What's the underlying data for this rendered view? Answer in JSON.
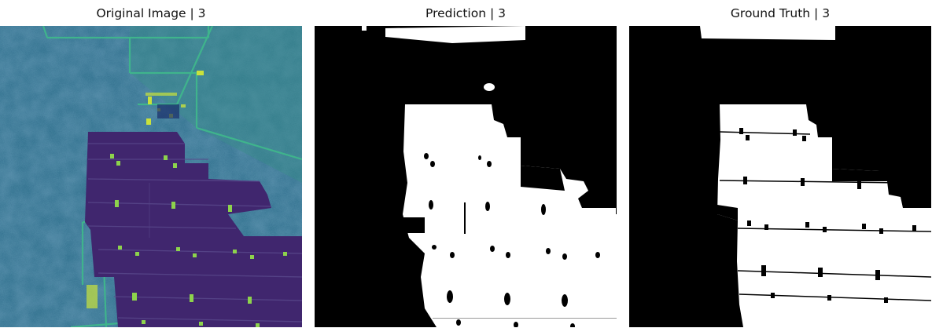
{
  "figure": {
    "panels": [
      {
        "id": "original",
        "title": "Original Image | 3"
      },
      {
        "id": "prediction",
        "title": "Prediction | 3"
      },
      {
        "id": "ground_truth",
        "title": "Ground Truth | 3"
      }
    ],
    "colors": {
      "background": "#ffffff",
      "mask_fg": "#ffffff",
      "mask_bg": "#000000",
      "viridis_bg": "#2a6f88",
      "viridis_dark": "#40266e",
      "viridis_bright": "#c9e23b",
      "viridis_road": "#3fb48c"
    }
  }
}
